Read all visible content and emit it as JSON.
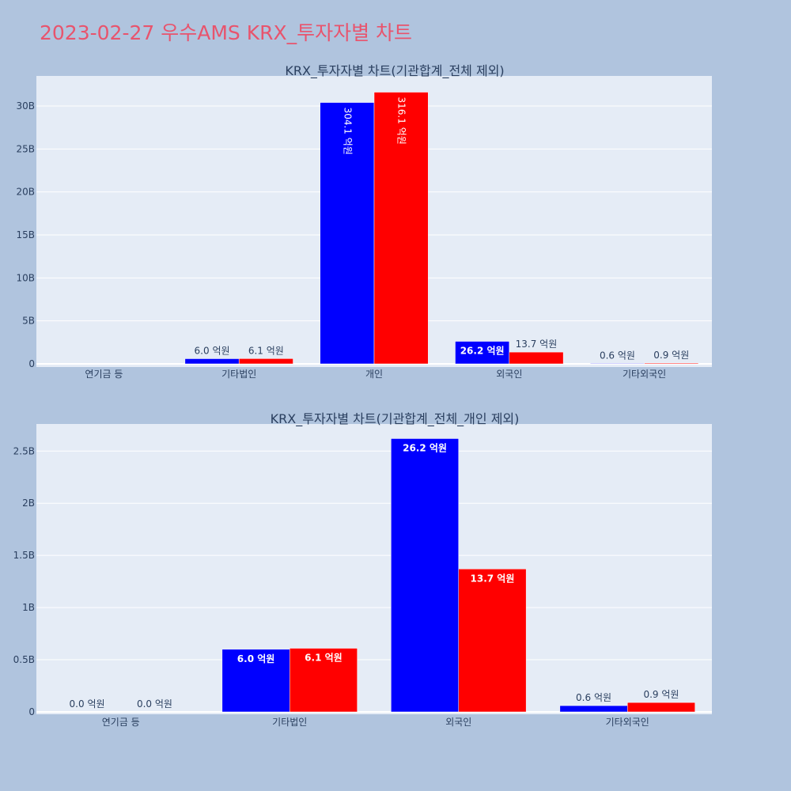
{
  "page": {
    "title": "2023-02-27 우수AMS KRX_투자자별 차트"
  },
  "colors": {
    "background": "#b0c4de",
    "plot_bg": "#e5ecf6",
    "title": "#e8546d",
    "text": "#2a3f5f",
    "series_a": "#0000ff",
    "series_b": "#ff0000"
  },
  "chart_data": [
    {
      "type": "bar",
      "title": "KRX_투자자별 차트(기관합계_전체 제외)",
      "categories": [
        "연기금 등",
        "기타법인",
        "개인",
        "외국인",
        "기타외국인"
      ],
      "series": [
        {
          "values": [
            0,
            600000000,
            30410000000,
            2620000000,
            60000000
          ],
          "labels": [
            "",
            "6.0 억원",
            "304.1 억원",
            "26.2 억원",
            "0.6 억원"
          ]
        },
        {
          "values": [
            0,
            610000000,
            31610000000,
            1370000000,
            90000000
          ],
          "labels": [
            "",
            "6.1 억원",
            "316.1 억원",
            "13.7 억원",
            "0.9 억원"
          ]
        }
      ],
      "yticks": [
        0,
        5000000000,
        10000000000,
        15000000000,
        20000000000,
        25000000000,
        30000000000
      ],
      "ytick_labels": [
        "0",
        "5B",
        "10B",
        "15B",
        "20B",
        "25B",
        "30B"
      ],
      "ylim": [
        0,
        33500000000
      ],
      "grid": true,
      "legend": "none"
    },
    {
      "type": "bar",
      "title": "KRX_투자자별 차트(기관합계_전체_개인 제외)",
      "categories": [
        "연기금 등",
        "기타법인",
        "외국인",
        "기타외국인"
      ],
      "series": [
        {
          "values": [
            0,
            600000000,
            2620000000,
            60000000
          ],
          "labels": [
            "0.0 억원",
            "6.0 억원",
            "26.2 억원",
            "0.6 억원"
          ]
        },
        {
          "values": [
            0,
            610000000,
            1370000000,
            90000000
          ],
          "labels": [
            "0.0 억원",
            "6.1 억원",
            "13.7 억원",
            "0.9 억원"
          ]
        }
      ],
      "yticks": [
        0,
        500000000,
        1000000000,
        1500000000,
        2000000000,
        2500000000
      ],
      "ytick_labels": [
        "0",
        "0.5B",
        "1B",
        "1.5B",
        "2B",
        "2.5B"
      ],
      "ylim": [
        0,
        2760000000
      ],
      "grid": true,
      "legend": "none"
    }
  ]
}
